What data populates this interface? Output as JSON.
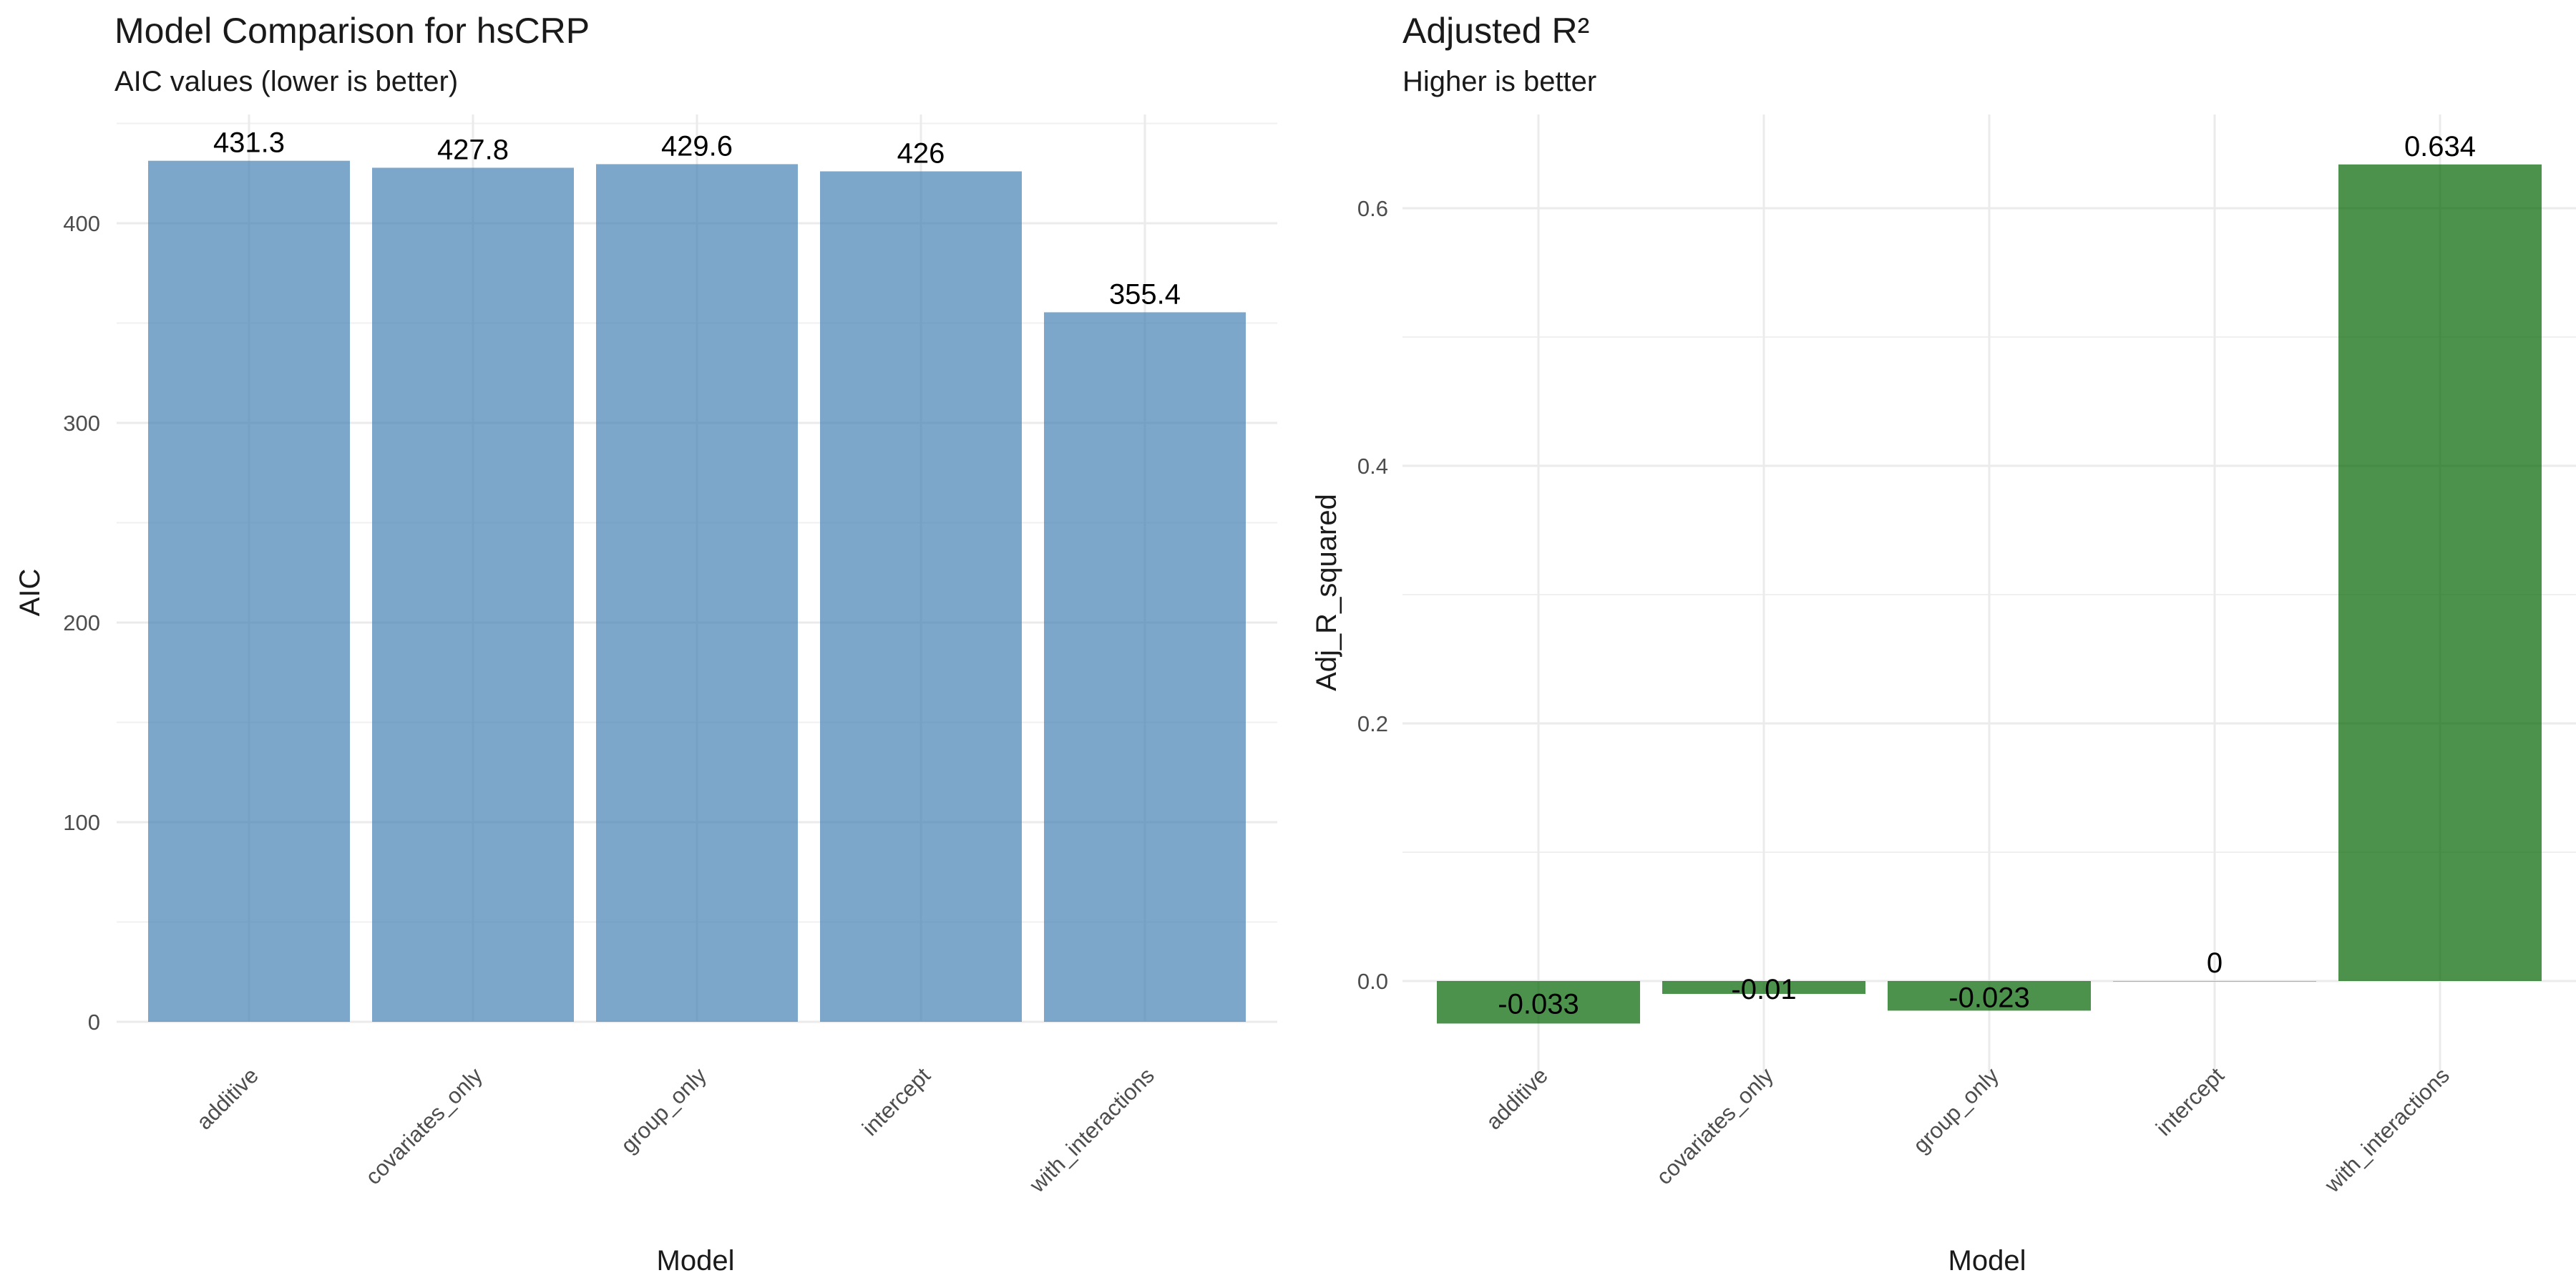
{
  "figure": {
    "panels": 2
  },
  "chart_data": [
    {
      "type": "bar",
      "title": "Model Comparison for hsCRP",
      "subtitle": "AIC values (lower is better)",
      "xlabel": "Model",
      "ylabel": "AIC",
      "categories": [
        "additive",
        "covariates_only",
        "group_only",
        "intercept",
        "with_interactions"
      ],
      "values": [
        431.3,
        427.8,
        429.6,
        426,
        355.4
      ],
      "data_labels": [
        "431.3",
        "427.8",
        "429.6",
        "426",
        "355.4"
      ],
      "ylim": [
        0,
        431.3
      ],
      "yticks": [
        0,
        100,
        200,
        300,
        400
      ],
      "ytick_labels": [
        "0",
        "100",
        "200",
        "300",
        "400"
      ],
      "bar_color": "#4682B4",
      "bar_opacity": 0.7,
      "grid": true,
      "legend": "none"
    },
    {
      "type": "bar",
      "title": "Adjusted R²",
      "subtitle": "Higher is better",
      "xlabel": "Model",
      "ylabel": "Adj_R_squared",
      "categories": [
        "additive",
        "covariates_only",
        "group_only",
        "intercept",
        "with_interactions"
      ],
      "values": [
        -0.033,
        -0.01,
        -0.023,
        0,
        0.634
      ],
      "data_labels": [
        "-0.033",
        "-0.01",
        "-0.023",
        "0",
        "0.634"
      ],
      "ylim": [
        -0.033,
        0.634
      ],
      "yticks": [
        0.0,
        0.2,
        0.4,
        0.6
      ],
      "ytick_labels": [
        "0.0",
        "0.2",
        "0.4",
        "0.6"
      ],
      "bar_color": "#006400",
      "bar_opacity": 0.7,
      "grid": true,
      "legend": "none"
    }
  ]
}
